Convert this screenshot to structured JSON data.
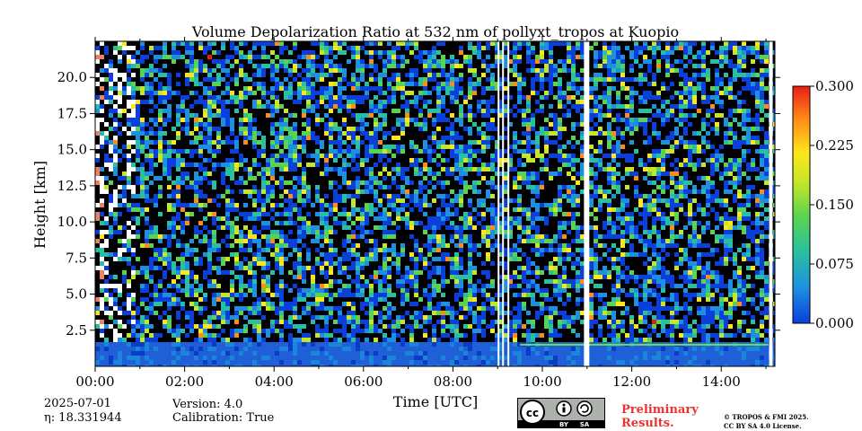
{
  "chart_data": {
    "type": "heatmap",
    "title": "Volume Depolarization Ratio at 532 nm of pollyxt_tropos at Kuopio",
    "xlabel": "Time [UTC]",
    "ylabel": "Height [km]",
    "x_ticks": [
      "00:00",
      "02:00",
      "04:00",
      "06:00",
      "08:00",
      "10:00",
      "12:00",
      "14:00"
    ],
    "x_tick_hours": [
      0,
      2,
      4,
      6,
      8,
      10,
      12,
      14
    ],
    "xlim_hours": [
      0,
      15.2
    ],
    "y_ticks": [
      "2.5",
      "5.0",
      "7.5",
      "10.0",
      "12.5",
      "15.0",
      "17.5",
      "20.0"
    ],
    "y_tick_values": [
      2.5,
      5.0,
      7.5,
      10.0,
      12.5,
      15.0,
      17.5,
      20.0
    ],
    "ylim": [
      0,
      22.5
    ],
    "colorbar": {
      "ticks": [
        "0.000",
        "0.075",
        "0.150",
        "0.225",
        "0.300"
      ],
      "tick_values": [
        0.0,
        0.075,
        0.15,
        0.225,
        0.3
      ],
      "range": [
        0.0,
        0.3
      ],
      "colors": [
        "#0a3fdc",
        "#1e90e0",
        "#28c0a0",
        "#5ad450",
        "#c8e628",
        "#ffe619",
        "#ff8c19",
        "#e81e14"
      ]
    },
    "data_gaps_hours": [
      [
        9.0,
        9.03
      ],
      [
        9.1,
        9.13
      ],
      [
        9.22,
        9.26
      ],
      [
        10.93,
        11.05
      ],
      [
        15.07,
        15.15
      ]
    ],
    "boundary_layer_top_km": 1.5
  },
  "footer": {
    "date": "2025-07-01",
    "eta": "η: 18.331944",
    "version": "Version: 4.0",
    "calibration": "Calibration: True",
    "prelim_line1": "Preliminary",
    "prelim_line2": "Results.",
    "copyright_line1": "© TROPOS & FMI 2025.",
    "copyright_line2": "CC BY SA 4.0 License.",
    "cc_label_by": "BY",
    "cc_label_sa": "SA"
  }
}
